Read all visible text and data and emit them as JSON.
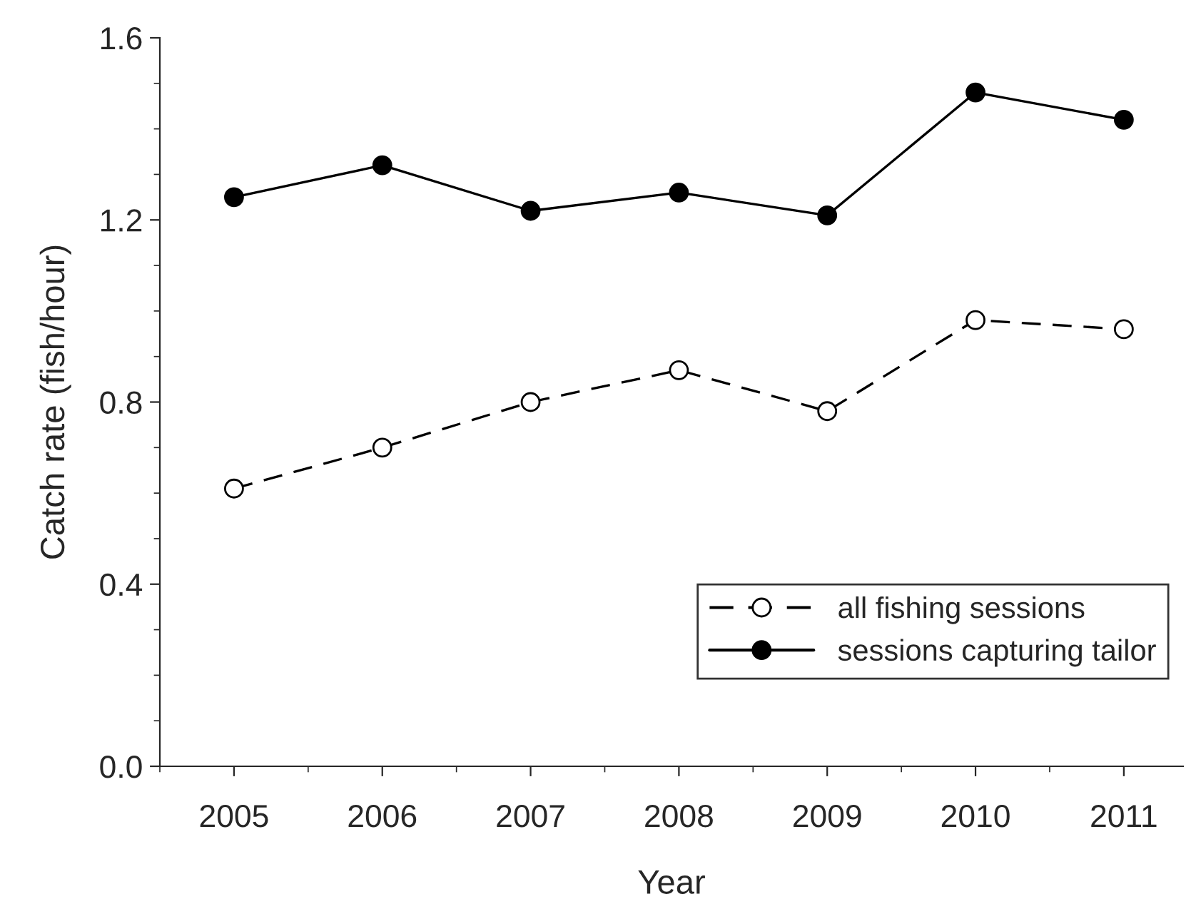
{
  "chart_data": {
    "type": "line",
    "xlabel": "Year",
    "ylabel": "Catch rate (fish/hour)",
    "x": [
      2005,
      2006,
      2007,
      2008,
      2009,
      2010,
      2011
    ],
    "series": [
      {
        "name": "all fishing sessions",
        "color": "#000000",
        "values": [
          0.61,
          0.7,
          0.8,
          0.87,
          0.78,
          0.98,
          0.96
        ],
        "line_style": "dashed",
        "marker": "circle"
      },
      {
        "name": "sessions capturing tailor",
        "color": "#000000",
        "values": [
          1.25,
          1.32,
          1.22,
          1.26,
          1.21,
          1.48,
          1.42
        ],
        "line_style": "solid",
        "marker": "circle"
      }
    ],
    "xlim": [
      2004.5,
      2011.4
    ],
    "xticks": [
      2005,
      2006,
      2007,
      2008,
      2009,
      2010,
      2011
    ],
    "ylim": [
      0,
      1.6
    ],
    "yticks": [
      {
        "value": 0,
        "label": "0.0"
      },
      {
        "value": 0.4,
        "label": "0.4"
      },
      {
        "value": 0.8,
        "label": "0.8"
      },
      {
        "value": 1.2,
        "label": "1.2"
      },
      {
        "value": 1.6,
        "label": "1.6"
      }
    ],
    "grid": false,
    "legend": "bottom right"
  }
}
